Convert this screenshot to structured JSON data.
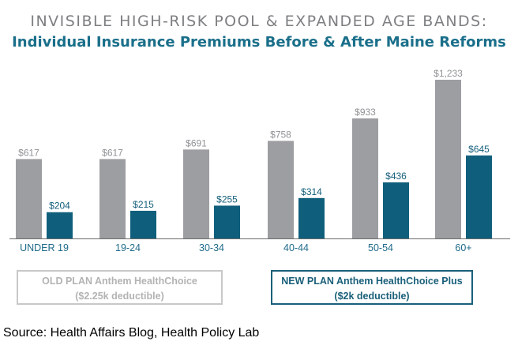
{
  "chart_data": {
    "type": "bar",
    "title": "INVISIBLE HIGH-RISK POOL & EXPANDED AGE BANDS:",
    "subtitle": "Individual Insurance Premiums Before & After Maine Reforms",
    "categories": [
      "UNDER 19",
      "19-24",
      "30-34",
      "40-44",
      "50-54",
      "60+"
    ],
    "series": [
      {
        "name": "OLD PLAN Anthem HealthChoice ($2.25k deductible)",
        "values": [
          617,
          617,
          691,
          758,
          933,
          1233
        ],
        "labels": [
          "$617",
          "$617",
          "$691",
          "$758",
          "$933",
          "$1,233"
        ],
        "color": "#9d9ea1"
      },
      {
        "name": "NEW PLAN Anthem HealthChoice Plus ($2k deductible)",
        "values": [
          204,
          215,
          255,
          314,
          436,
          645
        ],
        "labels": [
          "$204",
          "$215",
          "$255",
          "$314",
          "$436",
          "$645"
        ],
        "color": "#0f5f7c"
      }
    ],
    "ylim": [
      0,
      1233
    ],
    "grid": false,
    "legend_placement": "bottom"
  },
  "legend": {
    "old_line1": "OLD PLAN Anthem HealthChoice",
    "old_line2": "($2.25k deductible)",
    "new_line1": "NEW PLAN Anthem HealthChoice Plus",
    "new_line2": "($2k deductible)"
  },
  "source": "Source: Health Affairs Blog, Health Policy Lab",
  "colors": {
    "title_gray": "#7d7f82",
    "subtitle_blue": "#1a6f8a",
    "category_label": "#1f6b8a",
    "old_label": "#8f9194",
    "new_label": "#155f7b"
  }
}
